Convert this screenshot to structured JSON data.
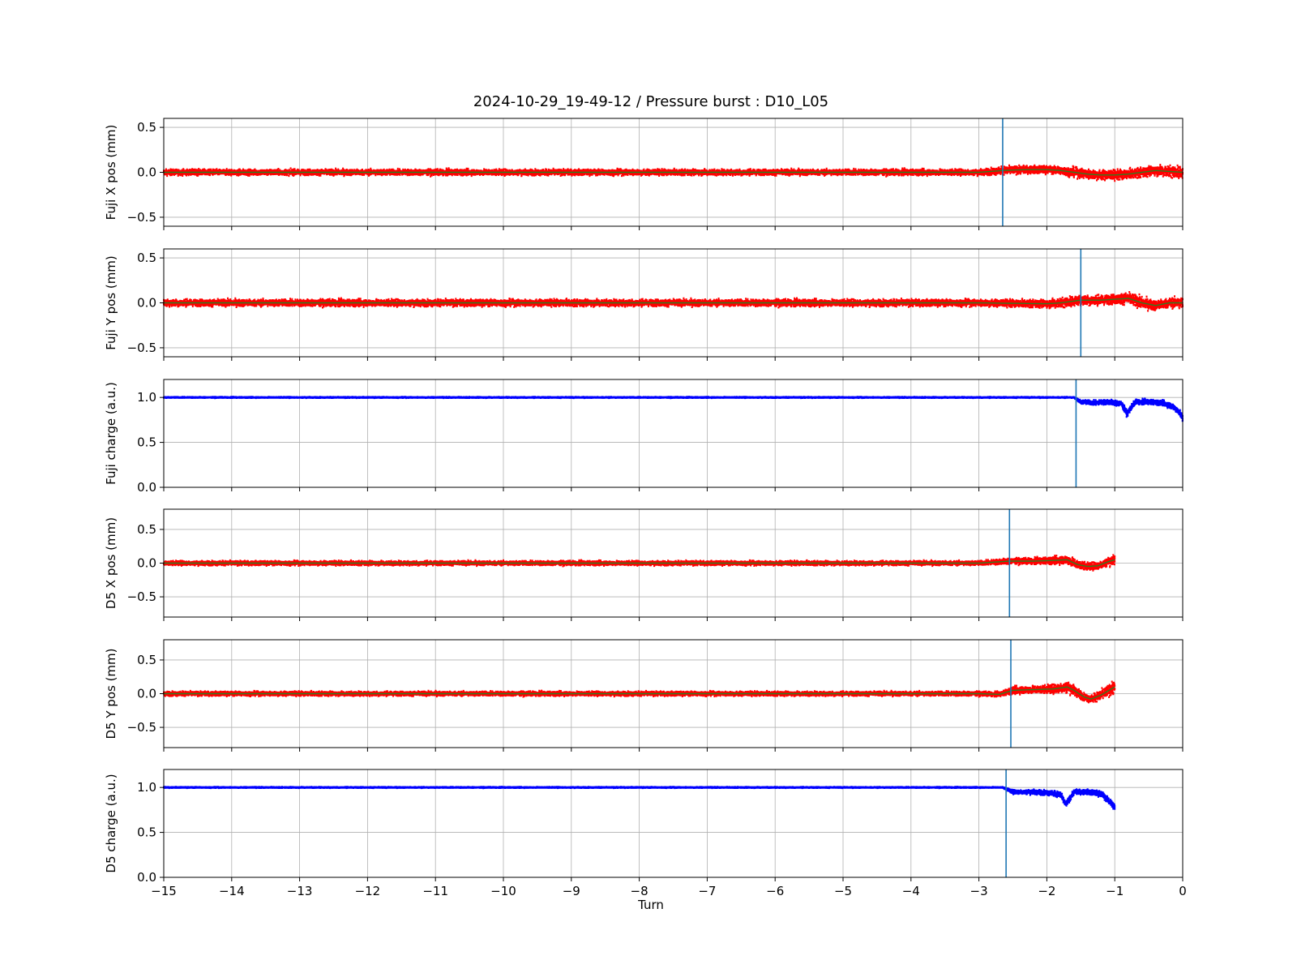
{
  "chart_data": {
    "type": "scatter",
    "title": "2024-10-29_19-49-12 / Pressure burst : D10_L05",
    "xlabel": "Turn",
    "xlim": [
      -15,
      0
    ],
    "xticks": [
      "−15",
      "−14",
      "−13",
      "−12",
      "−11",
      "−10",
      "−9",
      "−8",
      "−7",
      "−6",
      "−5",
      "−4",
      "−3",
      "−2",
      "−1",
      "0"
    ],
    "grid": true,
    "colors": {
      "position": "#ff0000",
      "charge": "#0000ff",
      "smooth": "#2e7d1e",
      "marker": "#1f77b4"
    },
    "panels": [
      {
        "ylabel": "Fuji X pos (mm)",
        "ylim": [
          -0.6,
          0.6
        ],
        "yticks": [
          0.5,
          0.0,
          -0.5
        ],
        "yticklabels": [
          "0.5",
          "0.0",
          "−0.5"
        ],
        "kind": "position",
        "data_end": 0,
        "vline_x": -2.65,
        "samples": {
          "x": [
            -15,
            -14,
            -13,
            -12,
            -11,
            -10,
            -9,
            -8,
            -7,
            -6,
            -5,
            -4,
            -3,
            -2.65,
            -2.3,
            -2.0,
            -1.8,
            -1.6,
            -1.4,
            -1.2,
            -1.0,
            -0.8,
            -0.6,
            -0.4,
            -0.2,
            0
          ],
          "y": [
            0.0,
            0.0,
            0.0,
            0.0,
            0.0,
            0.0,
            0.0,
            0.0,
            0.0,
            0.0,
            0.0,
            0.0,
            0.0,
            0.02,
            0.03,
            0.03,
            0.02,
            0.0,
            -0.02,
            -0.03,
            -0.03,
            -0.02,
            0.0,
            0.02,
            0.01,
            0.0
          ],
          "spread": [
            0.03,
            0.03,
            0.03,
            0.03,
            0.03,
            0.03,
            0.03,
            0.03,
            0.03,
            0.03,
            0.03,
            0.03,
            0.03,
            0.04,
            0.04,
            0.04,
            0.04,
            0.05,
            0.05,
            0.05,
            0.05,
            0.05,
            0.05,
            0.05,
            0.06,
            0.06
          ]
        }
      },
      {
        "ylabel": "Fuji Y pos (mm)",
        "ylim": [
          -0.6,
          0.6
        ],
        "yticks": [
          0.5,
          0.0,
          -0.5
        ],
        "yticklabels": [
          "0.5",
          "0.0",
          "−0.5"
        ],
        "kind": "position",
        "data_end": 0,
        "vline_x": -1.5,
        "samples": {
          "x": [
            -15,
            -14,
            -13,
            -12,
            -11,
            -10,
            -9,
            -8,
            -7,
            -6,
            -5,
            -4,
            -3,
            -2.0,
            -1.8,
            -1.6,
            -1.5,
            -1.2,
            -1.0,
            -0.8,
            -0.6,
            -0.4,
            -0.2,
            0
          ],
          "y": [
            0.0,
            0.0,
            0.0,
            0.0,
            0.0,
            0.0,
            0.0,
            0.0,
            0.0,
            0.0,
            0.0,
            0.0,
            0.0,
            -0.01,
            0.0,
            0.02,
            0.03,
            0.03,
            0.04,
            0.05,
            0.0,
            -0.03,
            0.0,
            0.0
          ],
          "spread": [
            0.035,
            0.035,
            0.035,
            0.035,
            0.035,
            0.035,
            0.035,
            0.035,
            0.035,
            0.035,
            0.035,
            0.035,
            0.035,
            0.04,
            0.05,
            0.05,
            0.05,
            0.05,
            0.05,
            0.06,
            0.06,
            0.05,
            0.05,
            0.06
          ]
        }
      },
      {
        "ylabel": "Fuji charge (a.u.)",
        "ylim": [
          0.0,
          1.2
        ],
        "yticks": [
          1.0,
          0.5,
          0.0
        ],
        "yticklabels": [
          "1.0",
          "0.5",
          "0.0"
        ],
        "kind": "charge",
        "data_end": 0,
        "vline_x": -1.57,
        "samples": {
          "x": [
            -15,
            -14,
            -13,
            -12,
            -11,
            -10,
            -9,
            -8,
            -7,
            -6,
            -5,
            -4,
            -3,
            -2,
            -1.6,
            -1.5,
            -1.3,
            -1.1,
            -0.9,
            -0.82,
            -0.7,
            -0.5,
            -0.3,
            -0.15,
            -0.05,
            0
          ],
          "y": [
            1.0,
            1.0,
            1.0,
            1.0,
            1.0,
            1.0,
            1.0,
            1.0,
            1.0,
            1.0,
            1.0,
            1.0,
            1.0,
            1.0,
            1.0,
            0.95,
            0.94,
            0.95,
            0.93,
            0.82,
            0.95,
            0.95,
            0.94,
            0.9,
            0.84,
            0.76
          ],
          "spread": [
            0.005,
            0.005,
            0.005,
            0.005,
            0.005,
            0.005,
            0.005,
            0.005,
            0.005,
            0.005,
            0.005,
            0.005,
            0.005,
            0.005,
            0.005,
            0.02,
            0.025,
            0.025,
            0.03,
            0.03,
            0.025,
            0.025,
            0.025,
            0.03,
            0.03,
            0.04
          ]
        }
      },
      {
        "ylabel": "D5 X pos (mm)",
        "ylim": [
          -0.8,
          0.8
        ],
        "yticks": [
          0.5,
          0.0,
          -0.5
        ],
        "yticklabels": [
          "0.5",
          "0.0",
          "−0.5"
        ],
        "kind": "position",
        "data_end": -1,
        "vline_x": -2.55,
        "samples": {
          "x": [
            -15,
            -14,
            -13,
            -12,
            -11,
            -10,
            -9,
            -8,
            -7,
            -6,
            -5,
            -4,
            -3,
            -2.55,
            -2.2,
            -1.9,
            -1.7,
            -1.55,
            -1.4,
            -1.25,
            -1.1,
            -1.0
          ],
          "y": [
            0.0,
            0.0,
            0.0,
            0.0,
            0.0,
            0.0,
            0.0,
            0.0,
            0.0,
            0.0,
            0.0,
            0.0,
            0.0,
            0.03,
            0.03,
            0.04,
            0.05,
            -0.02,
            -0.05,
            -0.04,
            0.02,
            0.05
          ],
          "spread": [
            0.03,
            0.03,
            0.03,
            0.03,
            0.03,
            0.03,
            0.03,
            0.03,
            0.03,
            0.03,
            0.03,
            0.03,
            0.03,
            0.04,
            0.04,
            0.05,
            0.06,
            0.06,
            0.05,
            0.05,
            0.06,
            0.07
          ]
        }
      },
      {
        "ylabel": "D5 Y pos (mm)",
        "ylim": [
          -0.8,
          0.8
        ],
        "yticks": [
          0.5,
          0.0,
          -0.5
        ],
        "yticklabels": [
          "0.5",
          "0.0",
          "−0.5"
        ],
        "kind": "position",
        "data_end": -1,
        "vline_x": -2.53,
        "samples": {
          "x": [
            -15,
            -14,
            -13,
            -12,
            -11,
            -10,
            -9,
            -8,
            -7,
            -6,
            -5,
            -4,
            -3,
            -2.7,
            -2.5,
            -2.2,
            -1.9,
            -1.7,
            -1.6,
            -1.45,
            -1.35,
            -1.2,
            -1.05,
            -1.0
          ],
          "y": [
            0.0,
            0.0,
            0.0,
            0.0,
            0.0,
            0.0,
            0.0,
            0.0,
            0.0,
            0.0,
            0.0,
            0.0,
            0.0,
            -0.01,
            0.05,
            0.06,
            0.07,
            0.1,
            0.05,
            -0.05,
            -0.08,
            -0.02,
            0.07,
            0.1
          ],
          "spread": [
            0.03,
            0.03,
            0.03,
            0.03,
            0.03,
            0.03,
            0.03,
            0.03,
            0.03,
            0.03,
            0.03,
            0.03,
            0.03,
            0.03,
            0.05,
            0.05,
            0.06,
            0.08,
            0.07,
            0.05,
            0.05,
            0.07,
            0.08,
            0.09
          ]
        }
      },
      {
        "ylabel": "D5 charge (a.u.)",
        "ylim": [
          0.0,
          1.2
        ],
        "yticks": [
          1.0,
          0.5,
          0.0
        ],
        "yticklabels": [
          "1.0",
          "0.5",
          "0.0"
        ],
        "kind": "charge",
        "data_end": -1,
        "vline_x": -2.6,
        "samples": {
          "x": [
            -15,
            -14,
            -13,
            -12,
            -11,
            -10,
            -9,
            -8,
            -7,
            -6,
            -5,
            -4,
            -3,
            -2.65,
            -2.5,
            -2.2,
            -1.95,
            -1.8,
            -1.72,
            -1.6,
            -1.4,
            -1.2,
            -1.1,
            -1.0
          ],
          "y": [
            1.0,
            1.0,
            1.0,
            1.0,
            1.0,
            1.0,
            1.0,
            1.0,
            1.0,
            1.0,
            1.0,
            1.0,
            1.0,
            1.0,
            0.95,
            0.95,
            0.94,
            0.92,
            0.81,
            0.95,
            0.95,
            0.93,
            0.86,
            0.78
          ],
          "spread": [
            0.005,
            0.005,
            0.005,
            0.005,
            0.005,
            0.005,
            0.005,
            0.005,
            0.005,
            0.005,
            0.005,
            0.005,
            0.005,
            0.005,
            0.02,
            0.025,
            0.025,
            0.03,
            0.03,
            0.025,
            0.025,
            0.03,
            0.03,
            0.04
          ]
        }
      }
    ]
  }
}
